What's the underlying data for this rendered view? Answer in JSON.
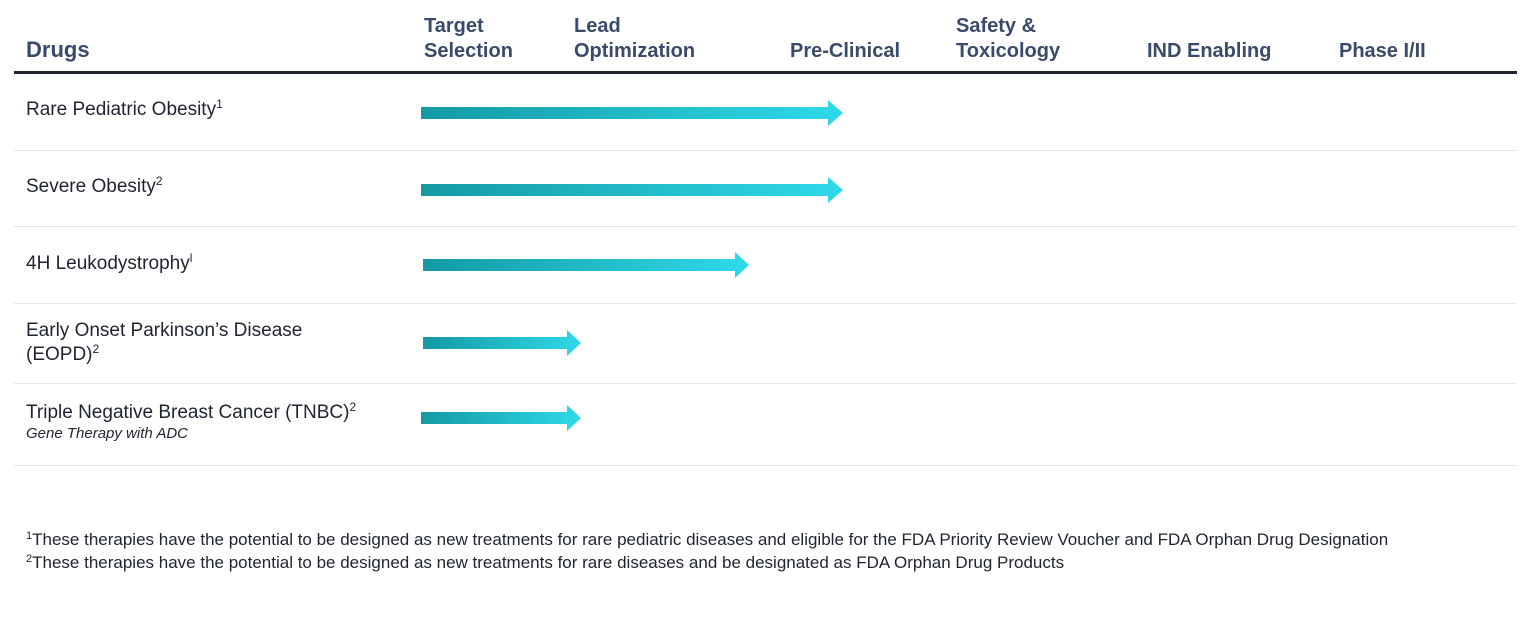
{
  "header": {
    "drugs_label": "Drugs",
    "stages": [
      {
        "line1": "Target",
        "line2": "Selection"
      },
      {
        "line1": "Lead",
        "line2": "Optimization"
      },
      {
        "line1": "",
        "line2": "Pre-Clinical"
      },
      {
        "line1": "Safety &",
        "line2": "Toxicology"
      },
      {
        "line1": "",
        "line2": "IND Enabling"
      },
      {
        "line1": "",
        "line2": "Phase I/II"
      }
    ]
  },
  "colors": {
    "arrow_start": "#149aa3",
    "arrow_end": "#2fd9ea",
    "header_text": "#3b4a6b",
    "rule": "#1f2430"
  },
  "pipeline": [
    {
      "name": "Rare Pediatric Obesity",
      "sup": "1",
      "subtitle": "",
      "progress_stage": "Pre-Clinical"
    },
    {
      "name": "Severe Obesity",
      "sup": "2",
      "subtitle": "",
      "progress_stage": "Pre-Clinical"
    },
    {
      "name": "4H Leukodystrophy",
      "sup": "l",
      "subtitle": "",
      "progress_stage": "Lead Optimization"
    },
    {
      "name": "Early Onset Parkinson’s Disease",
      "name_line2": "(EOPD)",
      "sup": "2",
      "subtitle": "",
      "progress_stage": "Target Selection"
    },
    {
      "name": "Triple Negative Breast Cancer (TNBC)",
      "sup": "2",
      "subtitle": "Gene Therapy with ADC",
      "progress_stage": "Target Selection"
    }
  ],
  "footnotes": [
    {
      "marker": "1",
      "text": "These therapies have the potential to be designed as new treatments for rare pediatric diseases and eligible for the FDA Priority Review Voucher and FDA Orphan Drug Designation"
    },
    {
      "marker": "2",
      "text": "These therapies have the potential to be designed as new treatments for rare diseases and be designated as FDA Orphan Drug Products"
    }
  ]
}
